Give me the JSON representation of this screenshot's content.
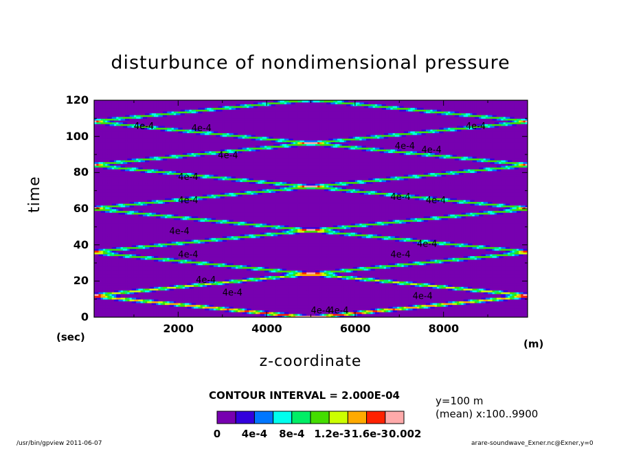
{
  "chart_data": {
    "type": "heatmap",
    "title": "disturbunce of nondimensional pressure",
    "xlabel": "z-coordinate",
    "ylabel": "time",
    "x_unit": "(m)",
    "y_unit": "(sec)",
    "xlim": [
      100,
      9900
    ],
    "ylim": [
      0,
      120
    ],
    "x_ticks": [
      "2000",
      "4000",
      "6000",
      "8000"
    ],
    "y_ticks": [
      "0",
      "20",
      "40",
      "60",
      "80",
      "100",
      "120"
    ],
    "contour_interval_text": "CONTOUR INTERVAL = 2.000E-04",
    "contour_labels": [
      "4e-4",
      "4e-4",
      "4e-4",
      "4e-4",
      "4e-4",
      "4e-4",
      "4e-4",
      "4e-4",
      "4e-4",
      "4e-4",
      "4e-4",
      "4e-4",
      "4e-4",
      "4e-4",
      "4e-4",
      "4e-4",
      "4e-4",
      "4e-4",
      "4e-4",
      "4e-4"
    ],
    "levels": [
      0,
      0.0002,
      0.0004,
      0.0006,
      0.0008,
      0.001,
      0.0012,
      0.0014,
      0.0016,
      0.0018,
      0.002
    ],
    "level_labels": [
      "0",
      "4e-4",
      "8e-4",
      "1.2e-3",
      "1.6e-3",
      "0.002"
    ],
    "colors": [
      "#7700b0",
      "#3300dd",
      "#0077ff",
      "#00ffee",
      "#00ee66",
      "#44dd00",
      "#ccff00",
      "#ffaa00",
      "#ff2200",
      "#ffaaaa"
    ],
    "legend_position": "bottom",
    "grid": false
  },
  "notes": {
    "y": "y=100  m",
    "mean": "(mean) x:100..9900"
  },
  "footer": {
    "left": "/usr/bin/gpview   2011-06-07",
    "right": "arare-soundwave_Exner.nc@Exner,y=0"
  }
}
